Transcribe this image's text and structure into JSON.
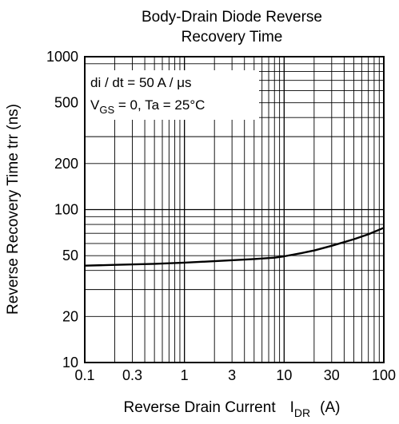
{
  "chart_data": {
    "type": "line",
    "title": [
      "Body-Drain Diode Reverse",
      "Recovery Time"
    ],
    "xlabel": {
      "text": "Reverse Drain Current",
      "symbol": "I",
      "symbol_sub": "DR",
      "unit": "(A)"
    },
    "ylabel": "Reverse Recovery Time   trr  (ns)",
    "x_scale": "log",
    "y_scale": "log",
    "xlim": [
      0.1,
      100
    ],
    "ylim": [
      10,
      1000
    ],
    "x_ticks": [
      0.1,
      0.3,
      1,
      3,
      10,
      30,
      100
    ],
    "x_tick_labels": [
      "0.1",
      "0.3",
      "1",
      "3",
      "10",
      "30",
      "100"
    ],
    "y_ticks": [
      10,
      20,
      50,
      100,
      200,
      500,
      1000
    ],
    "y_tick_labels": [
      "10",
      "20",
      "50",
      "100",
      "200",
      "500",
      "1000"
    ],
    "grid": true,
    "annotation": {
      "line1": "di / dt = 50 A / μs",
      "line2_prefix": "V",
      "line2_sub": "GS",
      "line2_rest": " = 0, Ta = 25°C"
    },
    "series": [
      {
        "x": [
          0.1,
          0.2,
          0.5,
          1,
          2,
          5,
          8,
          10,
          15,
          20,
          30,
          50,
          70,
          100
        ],
        "y": [
          43,
          43.5,
          44.2,
          45,
          46,
          47.5,
          48.5,
          49.5,
          52,
          54,
          58,
          64,
          69,
          76
        ]
      }
    ]
  }
}
